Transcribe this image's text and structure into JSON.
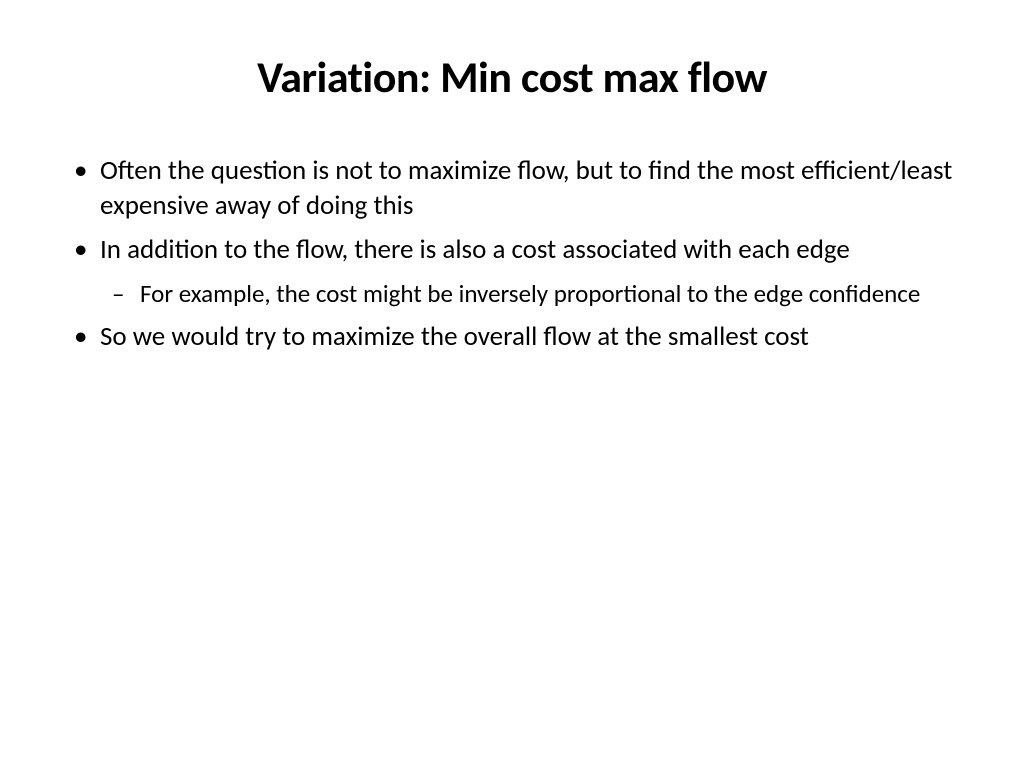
{
  "slide": {
    "title": "Variation: Min cost max flow",
    "bullets": [
      {
        "level": 1,
        "text": "Often the question is not to maximize flow, but to find the most efficient/least expensive away of doing this"
      },
      {
        "level": 1,
        "text": "In addition to the flow, there is also a cost associated with each edge"
      },
      {
        "level": 2,
        "text": "For example, the cost might be inversely proportional to the edge confidence"
      },
      {
        "level": 1,
        "text": "So we would try to maximize the overall flow at the smallest cost"
      }
    ],
    "background_color": "#ffffff",
    "text_color": "#000000",
    "title_fontsize": 44,
    "body_fontsize": 27,
    "sub_body_fontsize": 25
  }
}
